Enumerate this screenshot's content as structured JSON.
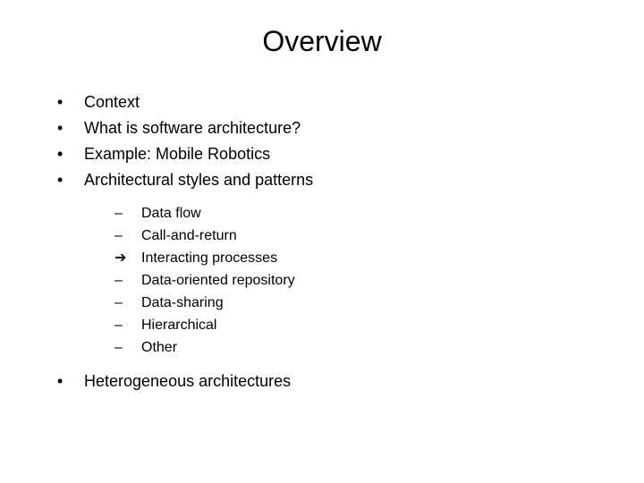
{
  "title": "Overview",
  "colors": {
    "background": "#ffffff",
    "text": "#000000"
  },
  "typography": {
    "title_fontsize": 32,
    "level1_fontsize": 18,
    "level2_fontsize": 16,
    "font_family": "Arial"
  },
  "level1_items": [
    {
      "bullet": "•",
      "text": "Context"
    },
    {
      "bullet": "•",
      "text": "What is software architecture?"
    },
    {
      "bullet": "•",
      "text": "Example: Mobile Robotics"
    },
    {
      "bullet": "•",
      "text": "Architectural styles and patterns"
    }
  ],
  "level2_items": [
    {
      "bullet": "–",
      "text": "Data flow"
    },
    {
      "bullet": "–",
      "text": "Call-and-return"
    },
    {
      "bullet": "➔",
      "text": "Interacting processes",
      "is_arrow": true
    },
    {
      "bullet": "–",
      "text": "Data-oriented repository"
    },
    {
      "bullet": "–",
      "text": "Data-sharing"
    },
    {
      "bullet": "–",
      "text": "Hierarchical"
    },
    {
      "bullet": "–",
      "text": "Other"
    }
  ],
  "level1_after": [
    {
      "bullet": "•",
      "text": "Heterogeneous architectures"
    }
  ]
}
